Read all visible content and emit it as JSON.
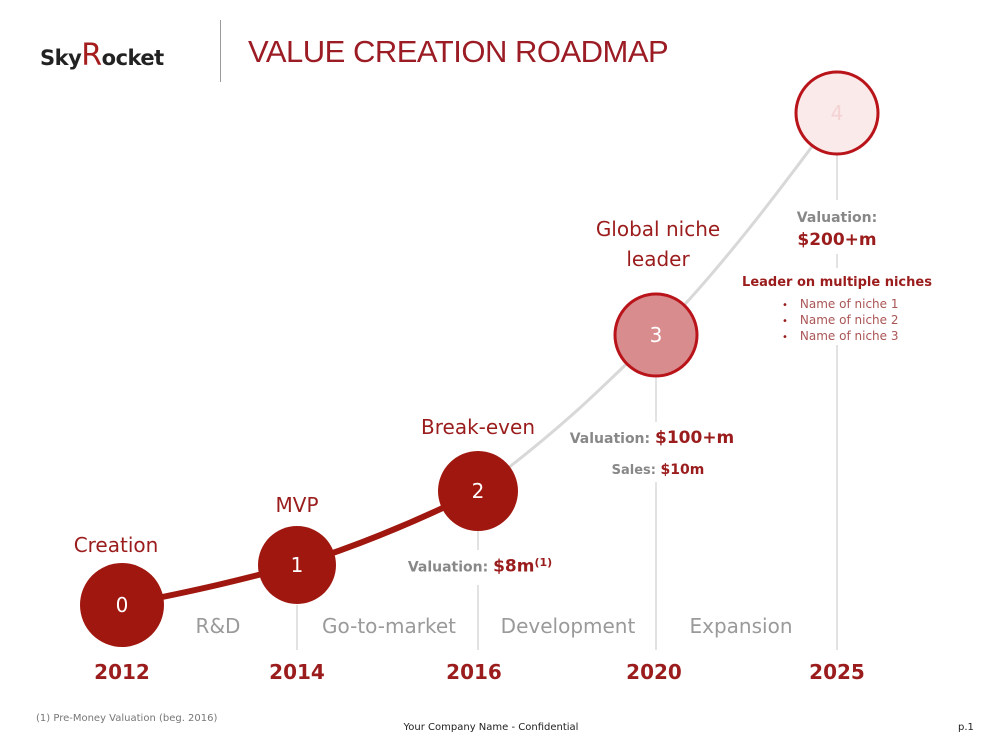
{
  "logo": {
    "text_a": "Sky",
    "text_r": "R",
    "text_b": "ocket"
  },
  "title": "VALUE CREATION ROADMAP",
  "milestones": [
    {
      "number": "0",
      "label": "Creation",
      "year": "2012"
    },
    {
      "number": "1",
      "label": "MVP",
      "year": "2014"
    },
    {
      "number": "2",
      "label": "Break-even",
      "year": "2016",
      "valuation_label": "Valuation:",
      "valuation_value": "$8m",
      "footnote_ref": "(1)"
    },
    {
      "number": "3",
      "label_line1": "Global niche",
      "label_line2": "leader",
      "year": "2020",
      "valuation_label": "Valuation:",
      "valuation_value": "$100+m",
      "sales_label": "Sales:",
      "sales_value": "$10m"
    },
    {
      "number": "4",
      "year": "2025",
      "valuation_label": "Valuation:",
      "valuation_value": "$200+m",
      "subtitle": "Leader on multiple niches",
      "niches": [
        "Name of niche 1",
        "Name of niche 2",
        "Name of niche 3"
      ]
    }
  ],
  "phases": [
    "R&D",
    "Go-to-market",
    "Development",
    "Expansion"
  ],
  "footer": {
    "note": "(1) Pre-Money Valuation (beg. 2016)",
    "company": "Your Company Name - Confidential",
    "page": "p.1"
  },
  "colors": {
    "brand": "#9b1c1c",
    "circle_dark": "#a0170f",
    "circle_3_fill": "#d98c8e",
    "circle_4_fill": "#fbeaea",
    "line_grey": "#d8d8d8"
  }
}
